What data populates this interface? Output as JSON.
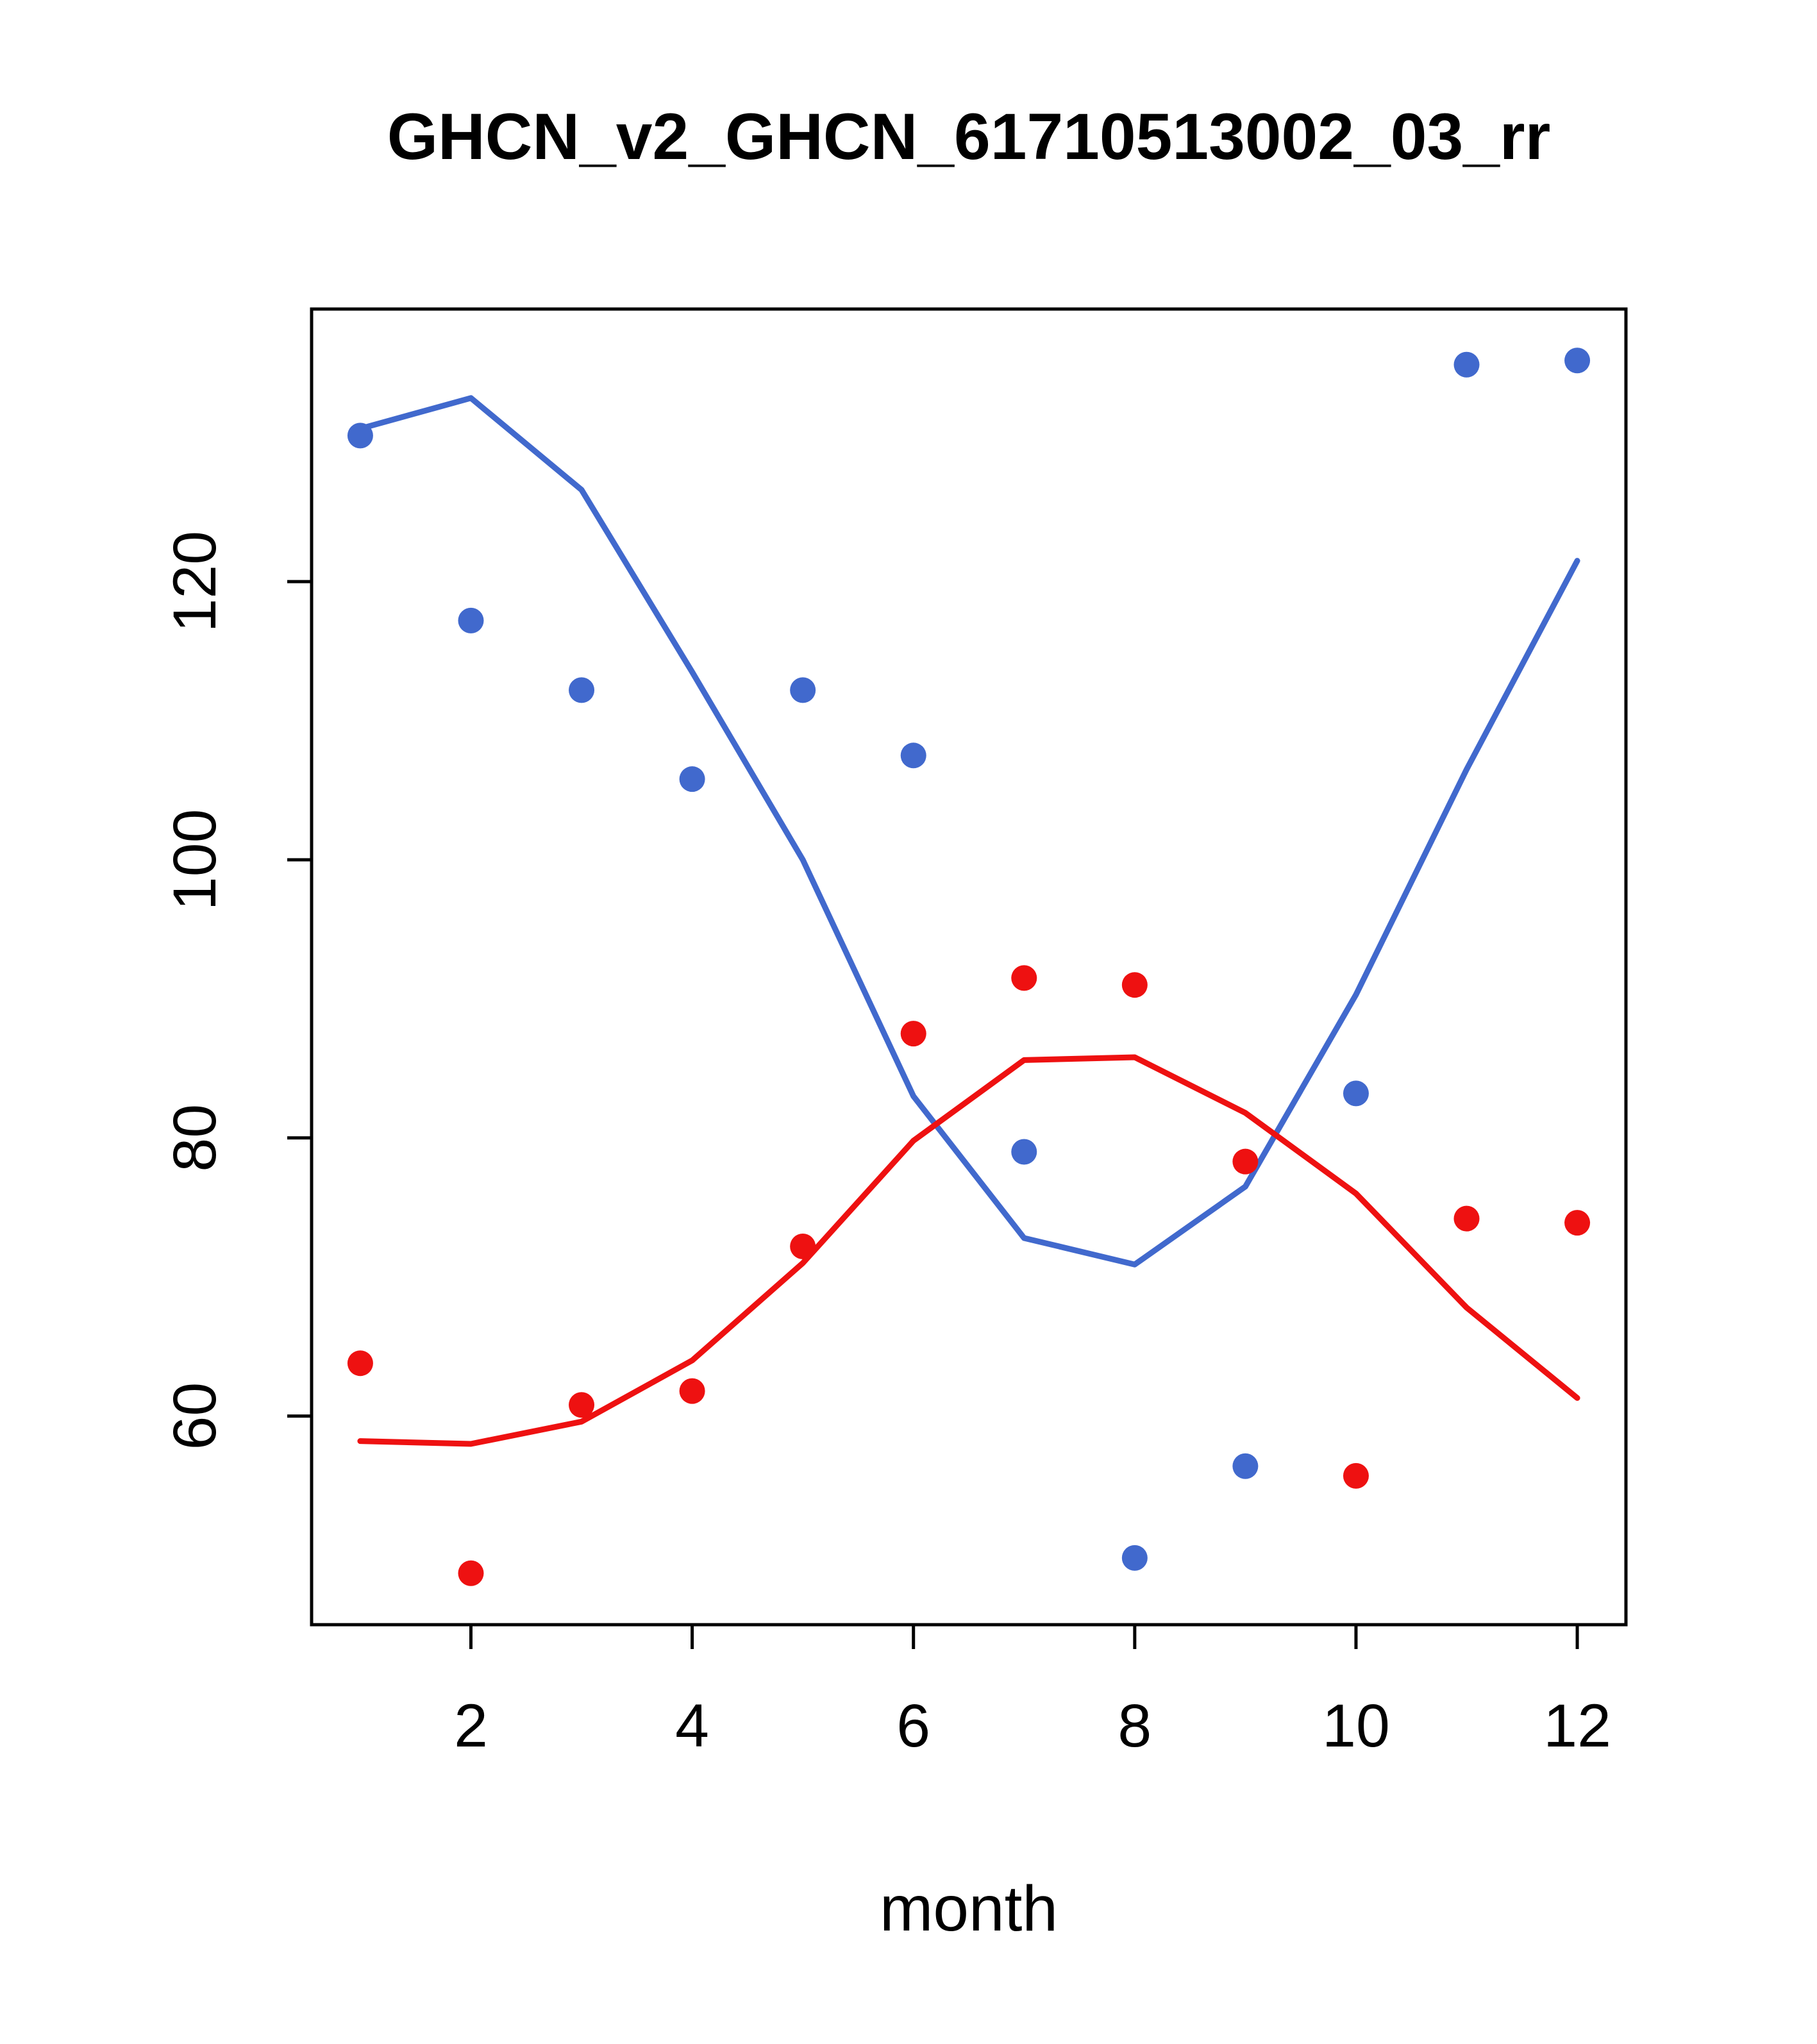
{
  "title": "GHCN_v2_GHCN_61710513002_03_rr",
  "chart_data": {
    "type": "scatter",
    "title": "GHCN_v2_GHCN_61710513002_03_rr",
    "xlabel": "month",
    "ylabel": "",
    "x_ticks": [
      2,
      4,
      6,
      8,
      10,
      12
    ],
    "y_ticks": [
      60,
      80,
      100,
      120
    ],
    "xlim": [
      0.56,
      12.44
    ],
    "ylim": [
      45.0,
      139.6
    ],
    "grid": false,
    "legend": "none",
    "months": [
      1,
      2,
      3,
      4,
      5,
      6,
      7,
      8,
      9,
      10,
      11,
      12
    ],
    "colors": {
      "blue": "#4169cd",
      "red": "#ee1111"
    },
    "series": [
      {
        "name": "blue-smoothed",
        "type": "line",
        "color": "#4169cd",
        "values": [
          131.0,
          133.2,
          126.6,
          113.5,
          100.0,
          83.0,
          72.8,
          70.9,
          76.5,
          90.3,
          106.5,
          121.5
        ]
      },
      {
        "name": "red-smoothed",
        "type": "line",
        "color": "#ee1111",
        "values": [
          58.2,
          58.0,
          59.6,
          64.0,
          71.0,
          79.8,
          85.6,
          85.8,
          81.8,
          76.0,
          67.8,
          61.3
        ]
      },
      {
        "name": "blue-observed",
        "type": "points",
        "color": "#4169cd",
        "values": [
          130.5,
          117.2,
          112.2,
          105.8,
          112.2,
          107.5,
          79.0,
          49.8,
          56.4,
          83.2,
          135.6,
          135.9
        ]
      },
      {
        "name": "red-observed",
        "type": "points",
        "color": "#ee1111",
        "values": [
          63.8,
          48.7,
          60.8,
          61.8,
          72.2,
          87.5,
          91.5,
          91.0,
          78.3,
          55.7,
          74.2,
          73.9
        ]
      }
    ]
  }
}
